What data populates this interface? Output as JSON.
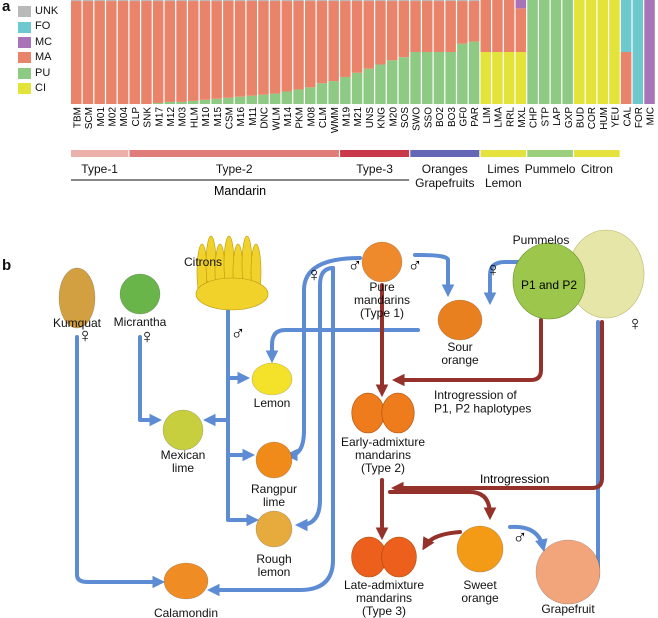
{
  "panel_a": {
    "letter": "a",
    "legend": [
      {
        "code": "UNK",
        "color": "#b9b9b9"
      },
      {
        "code": "FO",
        "color": "#6ec9cf"
      },
      {
        "code": "MC",
        "color": "#a874b7"
      },
      {
        "code": "MA",
        "color": "#e9846b"
      },
      {
        "code": "PU",
        "color": "#8fca85"
      },
      {
        "code": "CI",
        "color": "#e3e33a"
      }
    ],
    "chart_data": {
      "type": "bar",
      "stacked": true,
      "ylim": [
        0,
        1
      ],
      "stack_order": [
        "CI",
        "PU",
        "MA",
        "MC",
        "FO",
        "UNK"
      ],
      "categories": [
        "TBM",
        "SCM",
        "M01",
        "M02",
        "M04",
        "CLP",
        "SNK",
        "M17",
        "M12",
        "M03",
        "HLM",
        "M10",
        "M15",
        "CSM",
        "M16",
        "M11",
        "DNC",
        "WLM",
        "M14",
        "PKM",
        "M08",
        "CLM",
        "WMM",
        "M19",
        "M21",
        "UNS",
        "KNG",
        "M20",
        "SOS",
        "SWO",
        "SSO",
        "BO2",
        "BO3",
        "GF0",
        "PAR",
        "LIM",
        "LMA",
        "RRL",
        "MXL",
        "CHP",
        "STP",
        "LAP",
        "GXP",
        "BUD",
        "COR",
        "HUM",
        "YEU",
        "CAL",
        "FOR",
        "MIC"
      ],
      "series": [
        {
          "name": "CI",
          "values": [
            0,
            0,
            0,
            0,
            0,
            0,
            0,
            0,
            0,
            0,
            0,
            0,
            0,
            0,
            0,
            0,
            0,
            0,
            0,
            0,
            0,
            0,
            0,
            0,
            0,
            0,
            0,
            0,
            0,
            0,
            0,
            0,
            0,
            0,
            0,
            0.5,
            0.5,
            0.5,
            0.5,
            0,
            0,
            0,
            0,
            1,
            1,
            1,
            1,
            0,
            0,
            0
          ]
        },
        {
          "name": "PU",
          "values": [
            0,
            0,
            0,
            0,
            0,
            0,
            0,
            0.01,
            0.02,
            0.02,
            0.03,
            0.04,
            0.05,
            0.06,
            0.07,
            0.08,
            0.09,
            0.1,
            0.12,
            0.14,
            0.16,
            0.2,
            0.22,
            0.26,
            0.3,
            0.34,
            0.38,
            0.42,
            0.45,
            0.5,
            0.5,
            0.5,
            0.5,
            0.58,
            0.6,
            0,
            0,
            0,
            0,
            1,
            1,
            1,
            1,
            0,
            0,
            0,
            0,
            0,
            0,
            0
          ]
        },
        {
          "name": "MA",
          "values": [
            0.99,
            0.99,
            0.99,
            0.99,
            0.99,
            0.99,
            0.99,
            0.98,
            0.97,
            0.97,
            0.96,
            0.95,
            0.94,
            0.93,
            0.92,
            0.91,
            0.9,
            0.89,
            0.87,
            0.85,
            0.83,
            0.79,
            0.77,
            0.73,
            0.69,
            0.65,
            0.61,
            0.57,
            0.54,
            0.49,
            0.49,
            0.49,
            0.49,
            0.41,
            0.39,
            0.5,
            0.5,
            0.5,
            0.42,
            0,
            0,
            0,
            0,
            0,
            0,
            0,
            0,
            0.5,
            0,
            0
          ]
        },
        {
          "name": "MC",
          "values": [
            0,
            0,
            0,
            0,
            0,
            0,
            0,
            0,
            0,
            0,
            0,
            0,
            0,
            0,
            0,
            0,
            0,
            0,
            0,
            0,
            0,
            0,
            0,
            0,
            0,
            0,
            0,
            0,
            0,
            0,
            0,
            0,
            0,
            0,
            0,
            0,
            0,
            0,
            0.08,
            0,
            0,
            0,
            0,
            0,
            0,
            0,
            0,
            0,
            0,
            1
          ]
        },
        {
          "name": "FO",
          "values": [
            0,
            0,
            0,
            0,
            0,
            0,
            0,
            0,
            0,
            0,
            0,
            0,
            0,
            0,
            0,
            0,
            0,
            0,
            0,
            0,
            0,
            0,
            0,
            0,
            0,
            0,
            0,
            0,
            0,
            0,
            0,
            0,
            0,
            0,
            0,
            0,
            0,
            0,
            0,
            0,
            0,
            0,
            0,
            0,
            0,
            0,
            0,
            0.5,
            1,
            0
          ]
        },
        {
          "name": "UNK",
          "values": [
            0.01,
            0.01,
            0.01,
            0.01,
            0.01,
            0.01,
            0.01,
            0.01,
            0.01,
            0.01,
            0.01,
            0.01,
            0.01,
            0.01,
            0.01,
            0.01,
            0.01,
            0.01,
            0.01,
            0.01,
            0.01,
            0.01,
            0.01,
            0.01,
            0.01,
            0.01,
            0.01,
            0.01,
            0.01,
            0.01,
            0.01,
            0.01,
            0.01,
            0.01,
            0.01,
            0,
            0,
            0,
            0,
            0,
            0,
            0,
            0,
            0,
            0,
            0,
            0,
            0,
            0,
            0
          ]
        }
      ],
      "groups": [
        {
          "label": "Type-1",
          "first": 0,
          "last": 4,
          "color": "#ebb0a9"
        },
        {
          "label": "Type-2",
          "first": 5,
          "last": 22,
          "color": "#e07c7a"
        },
        {
          "label": "Type-3",
          "first": 23,
          "last": 28,
          "color": "#c9394a"
        },
        {
          "label": "Oranges\nGrapefruits",
          "first": 29,
          "last": 34,
          "color": "#6367b5"
        },
        {
          "label": "Limes\nLemon",
          "first": 35,
          "last": 38,
          "color": "#e6e23d"
        },
        {
          "label": "Pummelo",
          "first": 39,
          "last": 42,
          "color": "#9bcf7d"
        },
        {
          "label": "Citron",
          "first": 43,
          "last": 46,
          "color": "#e6e23d"
        }
      ],
      "supergroup": {
        "label": "Mandarin",
        "first": 0,
        "last": 28
      }
    }
  },
  "panel_b": {
    "letter": "b",
    "nodes": [
      {
        "id": "kumquat",
        "label": "Kumquat",
        "fruit": "#d2a040",
        "shape": "oval"
      },
      {
        "id": "micrantha",
        "label": "Micrantha",
        "fruit": "#6ab54a",
        "shape": "round"
      },
      {
        "id": "citrons",
        "label": "Citrons",
        "fruit": "#f1d22a",
        "shape": "hand"
      },
      {
        "id": "pure",
        "label": "Pure\nmandarins\n(Type 1)",
        "fruit": "#ef8a2c",
        "shape": "round"
      },
      {
        "id": "pummelos",
        "label": "Pummelos",
        "fruit": "#9cc74c",
        "shape": "big"
      },
      {
        "id": "sour",
        "label": "Sour\norange",
        "fruit": "#e9801f",
        "shape": "round"
      },
      {
        "id": "lemon",
        "label": "Lemon",
        "fruit": "#f3e12a",
        "shape": "lemon"
      },
      {
        "id": "mexican",
        "label": "Mexican\nlime",
        "fruit": "#c8cf3e",
        "shape": "round"
      },
      {
        "id": "rangpur",
        "label": "Rangpur\nlime",
        "fruit": "#f08a18",
        "shape": "round"
      },
      {
        "id": "rough",
        "label": "Rough\nlemon",
        "fruit": "#e7aa3c",
        "shape": "round"
      },
      {
        "id": "calamondin",
        "label": "Calamondin",
        "fruit": "#ef8c24",
        "shape": "round"
      },
      {
        "id": "early",
        "label": "Early-admixture\nmandarins\n(Type 2)",
        "fruit": "#ef7c1c",
        "shape": "pair"
      },
      {
        "id": "late",
        "label": "Late-admixture\nmandarins\n(Type 3)",
        "fruit": "#ec5f1c",
        "shape": "pair"
      },
      {
        "id": "sweet",
        "label": "Sweet\norange",
        "fruit": "#f39a16",
        "shape": "round"
      },
      {
        "id": "grapefruit",
        "label": "Grapefruit",
        "fruit": "#f2a47a",
        "shape": "round"
      }
    ],
    "pummelo_inner_label": "P1 and P2",
    "introgression_1": "Introgression of\nP1, P2 haplotypes",
    "introgression_2": "Introgression",
    "female_symbol": "♀",
    "male_symbol": "♂",
    "colors": {
      "blue_arrow": "#5d8cd4",
      "red_arrow": "#93312a"
    }
  }
}
